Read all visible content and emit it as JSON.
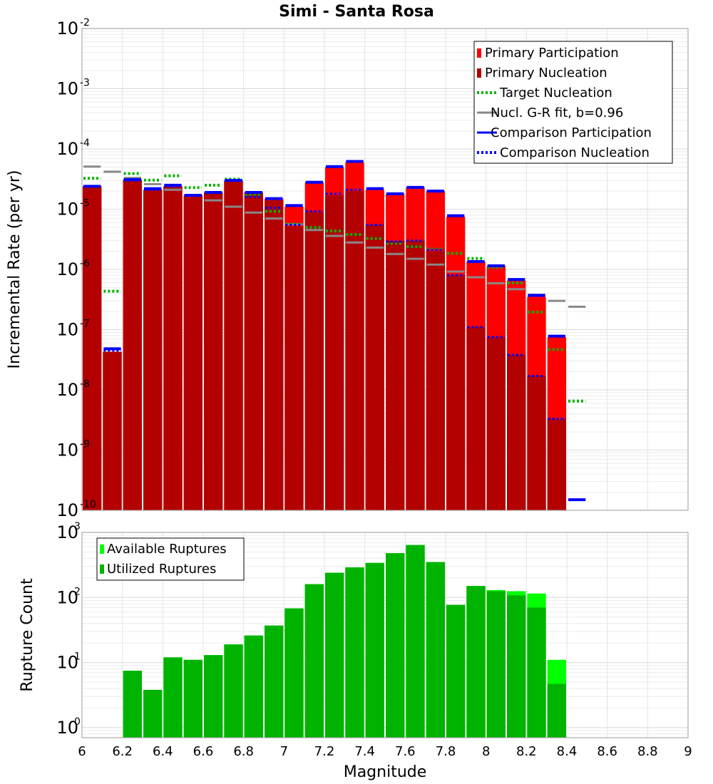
{
  "chart_data": [
    {
      "type": "bar",
      "title": "Simi - Santa Rosa",
      "ylabel": "Incremental Rate (per yr)",
      "xlabel": "",
      "xlim": [
        6,
        9
      ],
      "ylim": [
        1e-10,
        0.01
      ],
      "yscale": "log",
      "grid": true,
      "legend_position": "top-right",
      "x": [
        6.05,
        6.15,
        6.25,
        6.35,
        6.45,
        6.55,
        6.65,
        6.75,
        6.85,
        6.95,
        7.05,
        7.15,
        7.25,
        7.35,
        7.45,
        7.55,
        7.65,
        7.75,
        7.85,
        7.95,
        8.05,
        8.15,
        8.25,
        8.35,
        8.45
      ],
      "y_tick_exponents": [
        "-2",
        "-3",
        "-4",
        "-5",
        "-6",
        "-7",
        "-8",
        "-9",
        "-10"
      ],
      "series": [
        {
          "name": "Primary Participation",
          "kind": "bar",
          "color": "#ff0000",
          "values": [
            2.4e-05,
            4.3e-08,
            3.1e-05,
            2.1e-05,
            2.4e-05,
            1.7e-05,
            1.9e-05,
            3e-05,
            1.9e-05,
            1.5e-05,
            1.1e-05,
            2.8e-05,
            5e-05,
            6e-05,
            2.1e-05,
            1.8e-05,
            2.3e-05,
            2e-05,
            7.5e-06,
            1.35e-06,
            1.15e-06,
            6.5e-07,
            3.5e-07,
            7.5e-08,
            null
          ]
        },
        {
          "name": "Primary Nucleation",
          "kind": "bar",
          "color": "#b30000",
          "values": [
            2.4e-05,
            4.3e-08,
            3.1e-05,
            2.1e-05,
            2.4e-05,
            1.7e-05,
            1.9e-05,
            3e-05,
            1.9e-05,
            1.4e-05,
            5.2e-06,
            9e-06,
            1.7e-05,
            2e-05,
            5.5e-06,
            3e-06,
            3e-06,
            2e-06,
            8e-07,
            1.1e-07,
            7.5e-08,
            3.8e-08,
            1.7e-08,
            3.3e-09,
            null
          ]
        },
        {
          "name": "Target Nucleation",
          "kind": "dotted-segment",
          "color": "#00b300",
          "values": [
            3e-05,
            4e-07,
            3.6e-05,
            2.8e-05,
            3.3e-05,
            2.1e-05,
            2.3e-05,
            2.9e-05,
            1.6e-05,
            8.5e-06,
            5.2e-06,
            4.6e-06,
            4e-06,
            3.5e-06,
            3e-06,
            2.5e-06,
            2.2e-06,
            2e-06,
            1.7e-06,
            1.4e-06,
            1e-06,
            5.5e-07,
            1.8e-07,
            4.3e-08,
            6e-09
          ]
        },
        {
          "name": "Nucl. G-R fit, b=0.96",
          "kind": "solid-segment",
          "color": "#888888",
          "values": [
            5.1e-05,
            4.2e-05,
            3.3e-05,
            2.6e-05,
            2.1e-05,
            1.7e-05,
            1.4e-05,
            1.1e-05,
            8.8e-06,
            7e-06,
            5.6e-06,
            4.5e-06,
            3.6e-06,
            2.8e-06,
            2.3e-06,
            1.8e-06,
            1.5e-06,
            1.2e-06,
            9.2e-07,
            7.4e-07,
            5.9e-07,
            4.7e-07,
            3.8e-07,
            3e-07,
            2.4e-07
          ]
        },
        {
          "name": "Comparison Participation",
          "kind": "solid-segment",
          "color": "#0000ff",
          "values": [
            2.4e-05,
            4.8e-08,
            3.1e-05,
            2.2e-05,
            2.5e-05,
            1.7e-05,
            1.9e-05,
            3e-05,
            1.9e-05,
            1.5e-05,
            1.15e-05,
            2.8e-05,
            5.1e-05,
            6.2e-05,
            2.2e-05,
            1.8e-05,
            2.3e-05,
            2e-05,
            7.8e-06,
            1.35e-06,
            1.15e-06,
            6.8e-07,
            3.7e-07,
            7.8e-08,
            1.5e-10
          ]
        },
        {
          "name": "Comparison Nucleation",
          "kind": "dotted-segment",
          "color": "#0000ff",
          "values": [
            2.4e-05,
            4.5e-08,
            3e-05,
            2.1e-05,
            2.4e-05,
            1.7e-05,
            1.9e-05,
            3e-05,
            1.6e-05,
            1.05e-05,
            5.5e-06,
            9.2e-06,
            1.8e-05,
            2.1e-05,
            5.5e-06,
            2.9e-06,
            3e-06,
            2.1e-06,
            8e-07,
            1.1e-07,
            7.5e-08,
            3.8e-08,
            1.7e-08,
            3.3e-09,
            null
          ]
        }
      ]
    },
    {
      "type": "bar",
      "title": "",
      "ylabel": "Rupture Count",
      "xlabel": "Magnitude",
      "xlim": [
        6,
        9
      ],
      "ylim": [
        0.7,
        1000
      ],
      "yscale": "log",
      "grid": true,
      "legend_position": "top-left",
      "x": [
        6.05,
        6.15,
        6.25,
        6.35,
        6.45,
        6.55,
        6.65,
        6.75,
        6.85,
        6.95,
        7.05,
        7.15,
        7.25,
        7.35,
        7.45,
        7.55,
        7.65,
        7.75,
        7.85,
        7.95,
        8.05,
        8.15,
        8.25,
        8.35,
        8.45
      ],
      "x_ticks": [
        "6",
        "6.2",
        "6.4",
        "6.6",
        "6.8",
        "7",
        "7.2",
        "7.4",
        "7.6",
        "7.8",
        "8",
        "8.2",
        "8.4",
        "8.6",
        "8.8",
        "9"
      ],
      "y_tick_exponents": [
        "3",
        "2",
        "1",
        "0"
      ],
      "series": [
        {
          "name": "Available Ruptures",
          "kind": "bar",
          "color": "#00ff00",
          "values": [
            null,
            null,
            7.5,
            3.8,
            12,
            11,
            13,
            19,
            26,
            37,
            68,
            160,
            240,
            290,
            340,
            480,
            640,
            350,
            77,
            150,
            130,
            125,
            115,
            11,
            null
          ]
        },
        {
          "name": "Utilized Ruptures",
          "kind": "bar",
          "color": "#00b300",
          "values": [
            null,
            null,
            7.5,
            3.8,
            12,
            11,
            13,
            19,
            26,
            37,
            68,
            160,
            240,
            290,
            340,
            480,
            640,
            350,
            77,
            150,
            125,
            108,
            70,
            4.7,
            null
          ]
        }
      ]
    }
  ]
}
